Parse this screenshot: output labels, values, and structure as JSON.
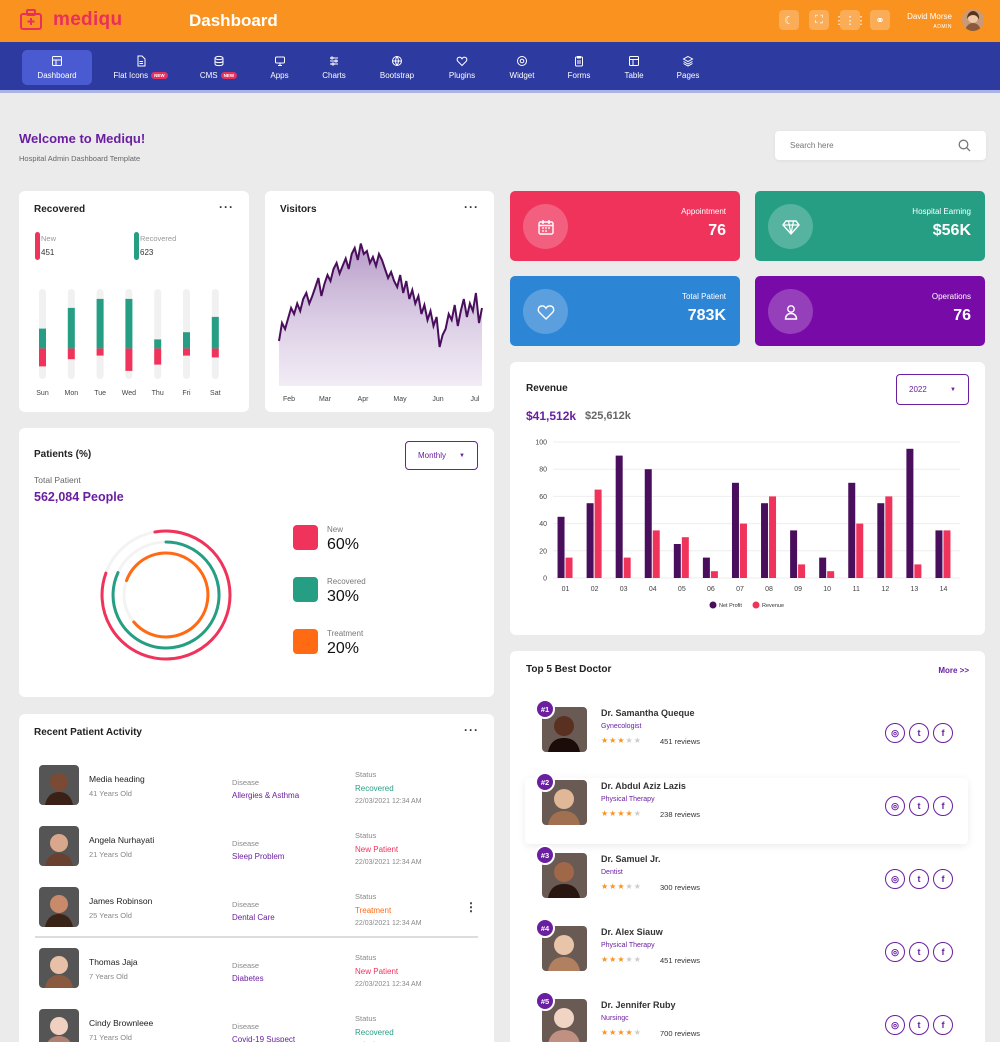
{
  "app": {
    "brand": "mediqu",
    "page_title": "Dashboard"
  },
  "topbar": {
    "user_name": "David Morse",
    "user_role": "ADMIN"
  },
  "colors": {
    "accent": "#f9921e",
    "nav": "#2d3aa0",
    "purple": "#6a1fa0",
    "pink": "#f0335b",
    "green": "#269e84",
    "orange": "#ff6a13",
    "blue": "#2d85d6",
    "dark_purple": "#4a0f5c"
  },
  "nav": {
    "items": [
      {
        "label": "Dashboard",
        "icon": "dashboard-icon"
      },
      {
        "label": "Flat Icons",
        "icon": "file-icon",
        "badge": "NEW"
      },
      {
        "label": "CMS",
        "icon": "database-icon",
        "badge": "NEW"
      },
      {
        "label": "Apps",
        "icon": "monitor-icon"
      },
      {
        "label": "Charts",
        "icon": "sliders-icon"
      },
      {
        "label": "Bootstrap",
        "icon": "globe-icon"
      },
      {
        "label": "Plugins",
        "icon": "heart-icon"
      },
      {
        "label": "Widget",
        "icon": "widget-icon"
      },
      {
        "label": "Forms",
        "icon": "clipboard-icon"
      },
      {
        "label": "Table",
        "icon": "table-icon"
      },
      {
        "label": "Pages",
        "icon": "layers-icon"
      }
    ]
  },
  "header": {
    "welcome": "Welcome to Mediqu!",
    "subtitle": "Hospital Admin Dashboard Template",
    "search_placeholder": "Search here"
  },
  "recovered_card": {
    "title": "Recovered",
    "new_label": "New",
    "new_value": "451",
    "recovered_label": "Recovered",
    "recovered_value": "623"
  },
  "visitors_card": {
    "title": "Visitors"
  },
  "stats": [
    {
      "label": "Appointment",
      "value": "76",
      "icon": "calendar-icon"
    },
    {
      "label": "Hospital Earning",
      "value": "$56K",
      "icon": "diamond-icon"
    },
    {
      "label": "Total Patient",
      "value": "783K",
      "icon": "heart-icon"
    },
    {
      "label": "Operations",
      "value": "76",
      "icon": "user-icon"
    }
  ],
  "patients_card": {
    "title": "Patients (%)",
    "period": "Monthly",
    "total_label": "Total Patient",
    "total_value": "562,084 People",
    "legend": [
      {
        "label": "New",
        "value": "60%"
      },
      {
        "label": "Recovered",
        "value": "30%"
      },
      {
        "label": "Treatment",
        "value": "20%"
      }
    ]
  },
  "revenue_card": {
    "title": "Revenue",
    "year": "2022",
    "primary": "$41,512k",
    "secondary": "$25,612k"
  },
  "activity_card": {
    "title": "Recent Patient Activity",
    "disease_label": "Disease",
    "status_label": "Status",
    "rows": [
      {
        "name": "Media heading",
        "age": "41 Years Old",
        "disease": "Allergies & Asthma",
        "status": "Recovered",
        "status_color": "#269e84",
        "date": "22/03/2021 12:34 AM"
      },
      {
        "name": "Angela Nurhayati",
        "age": "21 Years Old",
        "disease": "Sleep Problem",
        "status": "New Patient",
        "status_color": "#f0335b",
        "date": "22/03/2021 12:34 AM"
      },
      {
        "name": "James Robinson",
        "age": "25 Years Old",
        "disease": "Dental Care",
        "status": "Treatment",
        "status_color": "#ff6a13",
        "date": "22/03/2021 12:34 AM"
      },
      {
        "name": "Thomas Jaja",
        "age": "7 Years Old",
        "disease": "Diabetes",
        "status": "New Patient",
        "status_color": "#f0335b",
        "date": "22/03/2021 12:34 AM"
      },
      {
        "name": "Cindy Brownleee",
        "age": "71 Years Old",
        "disease": "Covid-19 Suspect",
        "status": "Recovered",
        "status_color": "#269e84",
        "date": "22/03/2021 12:34 AM"
      }
    ]
  },
  "doctors_card": {
    "title": "Top 5 Best Doctor",
    "more": "More >>",
    "doctors": [
      {
        "rank": "#1",
        "name": "Dr. Samantha Queque",
        "specialty": "Gynecologist",
        "rating": 3,
        "reviews": "451 reviews"
      },
      {
        "rank": "#2",
        "name": "Dr. Abdul Aziz Lazis",
        "specialty": "Physical Therapy",
        "rating": 4,
        "reviews": "238 reviews"
      },
      {
        "rank": "#3",
        "name": "Dr. Samuel Jr.",
        "specialty": "Dentist",
        "rating": 3,
        "reviews": "300 reviews"
      },
      {
        "rank": "#4",
        "name": "Dr. Alex Siauw",
        "specialty": "Physical Therapy",
        "rating": 3,
        "reviews": "451 reviews"
      },
      {
        "rank": "#5",
        "name": "Dr. Jennifer Ruby",
        "specialty": "Nursingc",
        "rating": 4,
        "reviews": "700 reviews"
      }
    ]
  },
  "chart_data": [
    {
      "type": "bar",
      "chart": "recovered-weekly",
      "categories": [
        "Sun",
        "Mon",
        "Tue",
        "Wed",
        "Thu",
        "Fri",
        "Sat"
      ],
      "series": [
        {
          "name": "New",
          "color": "#f0335b",
          "values": [
            20,
            12,
            8,
            25,
            18,
            8,
            10
          ]
        },
        {
          "name": "Recovered",
          "color": "#269e84",
          "values": [
            22,
            45,
            55,
            55,
            10,
            18,
            35
          ]
        }
      ],
      "ylim": [
        0,
        100
      ]
    },
    {
      "type": "area",
      "chart": "visitors",
      "x_ticks": [
        "Feb",
        "Mar",
        "Apr",
        "May",
        "Jun",
        "Jul"
      ],
      "values": [
        30,
        42,
        38,
        45,
        52,
        48,
        55,
        50,
        58,
        62,
        55,
        60,
        66,
        72,
        60,
        68,
        74,
        70,
        78,
        82,
        75,
        80,
        85,
        78,
        88,
        92,
        84,
        95,
        88,
        90,
        82,
        86,
        80,
        88,
        84,
        78,
        72,
        76,
        70,
        66,
        74,
        62,
        70,
        58,
        64,
        55,
        60,
        48,
        54,
        44,
        50,
        40,
        46,
        26,
        34,
        38,
        48,
        44,
        54,
        40,
        50,
        58,
        46,
        55,
        50,
        62,
        42,
        52
      ],
      "ylim": [
        0,
        100
      ]
    },
    {
      "type": "bar",
      "chart": "revenue",
      "categories": [
        "01",
        "02",
        "03",
        "04",
        "05",
        "06",
        "07",
        "08",
        "09",
        "10",
        "11",
        "12",
        "13",
        "14"
      ],
      "series": [
        {
          "name": "Net Profit",
          "color": "#4a0f5c",
          "values": [
            45,
            55,
            90,
            80,
            25,
            15,
            70,
            55,
            35,
            15,
            70,
            55,
            95,
            35
          ]
        },
        {
          "name": "Revenue",
          "color": "#f0335b",
          "values": [
            15,
            65,
            15,
            35,
            30,
            5,
            40,
            60,
            10,
            5,
            40,
            60,
            10,
            35
          ]
        }
      ],
      "yticks": [
        0,
        20,
        40,
        60,
        80,
        100
      ],
      "ylim": [
        0,
        100
      ]
    },
    {
      "type": "pie",
      "chart": "patients-radial",
      "categories": [
        "New",
        "Recovered",
        "Treatment"
      ],
      "values": [
        60,
        30,
        20
      ]
    }
  ]
}
